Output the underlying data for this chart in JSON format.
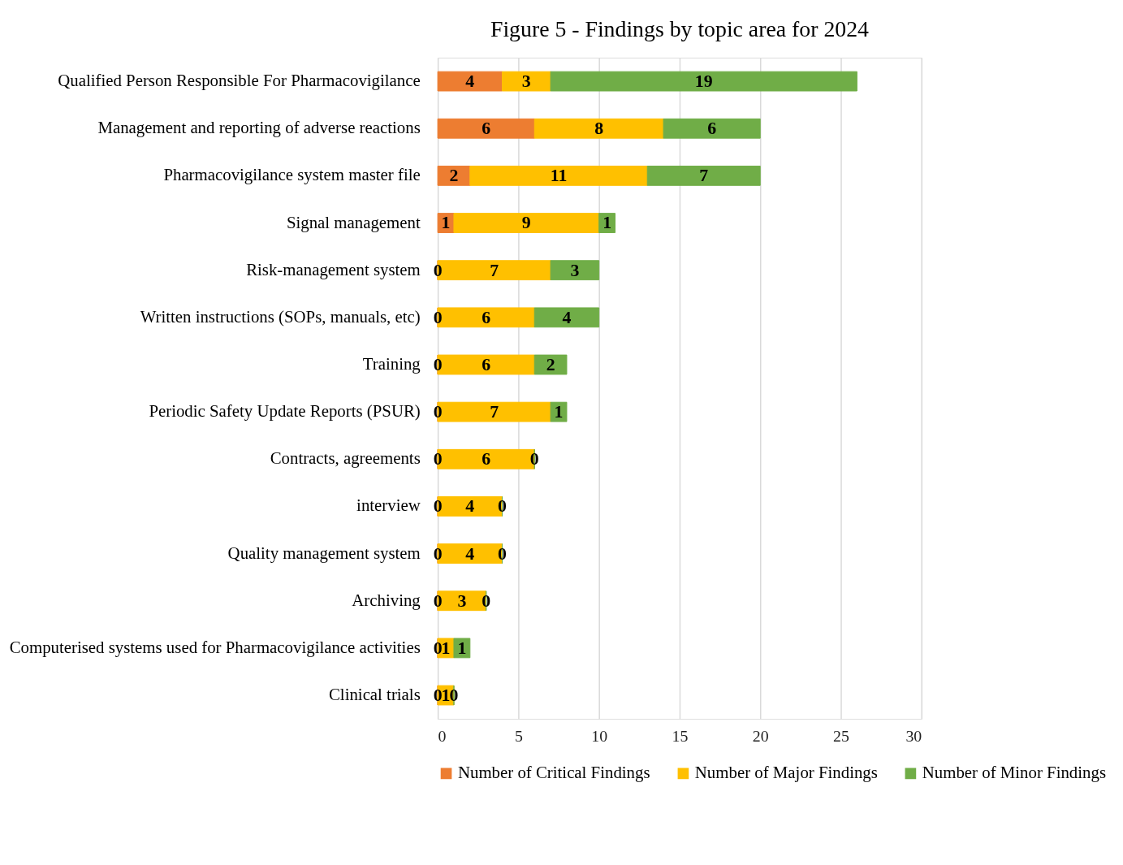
{
  "chart_data": {
    "type": "bar",
    "orientation": "horizontal",
    "stacked": true,
    "title": "Figure 5 - Findings by topic area for 2024",
    "categories": [
      "Qualified Person Responsible For Pharmacovigilance",
      "Management and reporting of adverse reactions",
      "Pharmacovigilance system master file",
      "Signal management",
      "Risk-management system",
      "Written instructions (SOPs, manuals, etc)",
      "Training",
      "Periodic Safety Update Reports (PSUR)",
      "Contracts, agreements",
      "interview",
      "Quality management system",
      "Archiving",
      "Computerised systems used for Pharmacovigilance activities",
      "Clinical trials"
    ],
    "series": [
      {
        "name": "Number of Critical Findings",
        "color": "#ed7d31",
        "values": [
          4,
          6,
          2,
          1,
          0,
          0,
          0,
          0,
          0,
          0,
          0,
          0,
          0,
          0
        ]
      },
      {
        "name": "Number of Major Findings",
        "color": "#ffc000",
        "values": [
          3,
          8,
          11,
          9,
          7,
          6,
          6,
          7,
          6,
          4,
          4,
          3,
          1,
          1
        ]
      },
      {
        "name": "Number of Minor Findings",
        "color": "#70ad47",
        "values": [
          19,
          6,
          7,
          1,
          3,
          4,
          2,
          1,
          0,
          0,
          0,
          0,
          1,
          0
        ]
      }
    ],
    "xlim": [
      0,
      30
    ],
    "xticks": [
      0,
      5,
      10,
      15,
      20,
      25,
      30
    ],
    "grid": "x",
    "legend": "bottom",
    "data_labels": true
  }
}
